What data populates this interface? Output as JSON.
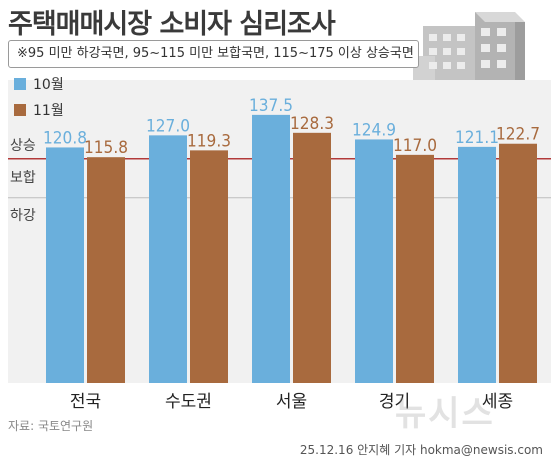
{
  "title": "주택매매시장 소비자 심리조사",
  "note": "※95 미만 하강국면, 95~115 미만 보합국면, 115~175 이상 상승국면",
  "source": "자료: 국토연구원",
  "byline": "25.12.16 안지혜 기자 hokma@newsis.com",
  "watermark": "뉴시스",
  "colors": {
    "series1": "#6aafdc",
    "series2": "#a86a3e",
    "refline": "#b23a3a",
    "band": "#f1f1f1"
  },
  "chart_data": {
    "type": "bar",
    "title": "주택매매시장 소비자 심리조사",
    "categories": [
      "전국",
      "수도권",
      "서울",
      "경기",
      "세종"
    ],
    "series": [
      {
        "name": "10월",
        "values": [
          120.8,
          127.0,
          137.5,
          124.9,
          121.1
        ]
      },
      {
        "name": "11월",
        "values": [
          115.8,
          119.3,
          128.3,
          117.0,
          122.7
        ]
      }
    ],
    "value_labels": [
      [
        "120.8",
        "127.0",
        "137.5",
        "124.9",
        "121.1"
      ],
      [
        "115.8",
        "119.3",
        "128.3",
        "117.0",
        "122.7"
      ]
    ],
    "zones": [
      {
        "label": "상승",
        "from": 115
      },
      {
        "label": "보합",
        "from": 95
      },
      {
        "label": "하강",
        "from": 0
      }
    ],
    "reference_lines": [
      115,
      95
    ],
    "ylim": [
      0,
      140
    ],
    "legend": "top-left",
    "grid": false
  }
}
